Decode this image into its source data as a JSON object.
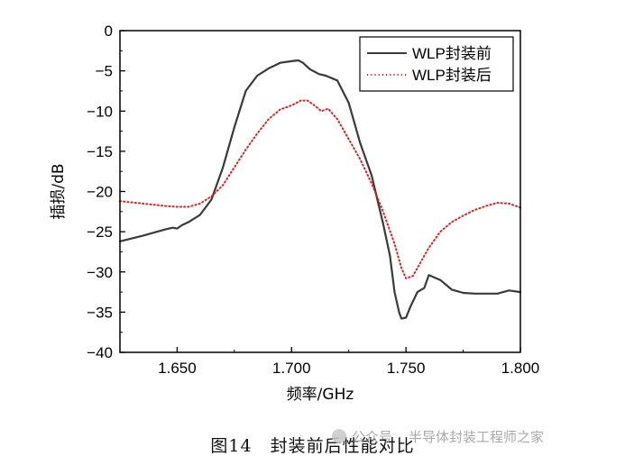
{
  "chart_data": {
    "type": "line",
    "xlabel": "频率/GHz",
    "ylabel": "插损/dB",
    "xlim": [
      1.625,
      1.8
    ],
    "ylim": [
      -40,
      0
    ],
    "xticks": [
      1.65,
      1.7,
      1.75,
      1.8
    ],
    "xtick_labels": [
      "1.650",
      "1.700",
      "1.750",
      "1.800"
    ],
    "yticks": [
      0,
      -5,
      -10,
      -15,
      -20,
      -25,
      -30,
      -35,
      -40
    ],
    "ytick_labels": [
      "0",
      "−5",
      "−10",
      "−15",
      "−20",
      "−25",
      "−30",
      "−35",
      "−40"
    ],
    "legend_position": "top-right",
    "grid": false,
    "series": [
      {
        "name": "WLP封装前",
        "color": "#3a3a3a",
        "style": "solid",
        "x": [
          1.625,
          1.635,
          1.645,
          1.648,
          1.65,
          1.652,
          1.655,
          1.66,
          1.665,
          1.67,
          1.675,
          1.68,
          1.685,
          1.69,
          1.695,
          1.7,
          1.703,
          1.705,
          1.708,
          1.712,
          1.715,
          1.72,
          1.725,
          1.73,
          1.735,
          1.74,
          1.743,
          1.745,
          1.747,
          1.748,
          1.75,
          1.752,
          1.755,
          1.758,
          1.76,
          1.765,
          1.77,
          1.775,
          1.78,
          1.785,
          1.79,
          1.795,
          1.8
        ],
        "y": [
          -26.2,
          -25.5,
          -24.7,
          -24.5,
          -24.6,
          -24.2,
          -23.8,
          -22.9,
          -21.0,
          -17.0,
          -12.0,
          -7.5,
          -5.6,
          -4.7,
          -4.0,
          -3.8,
          -3.7,
          -4.0,
          -4.8,
          -5.4,
          -5.6,
          -6.2,
          -9.0,
          -14.0,
          -18.0,
          -24.0,
          -28.0,
          -32.5,
          -35.0,
          -35.8,
          -35.7,
          -34.3,
          -32.5,
          -32.0,
          -30.4,
          -31.0,
          -32.2,
          -32.6,
          -32.7,
          -32.7,
          -32.7,
          -32.3,
          -32.5
        ]
      },
      {
        "name": "WLP封装后",
        "color": "#e02020",
        "style": "dotted",
        "x": [
          1.625,
          1.635,
          1.645,
          1.65,
          1.655,
          1.66,
          1.665,
          1.67,
          1.675,
          1.68,
          1.685,
          1.69,
          1.695,
          1.7,
          1.704,
          1.707,
          1.71,
          1.713,
          1.716,
          1.72,
          1.725,
          1.73,
          1.735,
          1.74,
          1.745,
          1.748,
          1.75,
          1.753,
          1.756,
          1.76,
          1.765,
          1.77,
          1.775,
          1.78,
          1.785,
          1.79,
          1.795,
          1.8
        ],
        "y": [
          -21.2,
          -21.5,
          -21.8,
          -21.9,
          -21.9,
          -21.5,
          -20.6,
          -19.2,
          -17.0,
          -14.8,
          -12.8,
          -11.0,
          -9.8,
          -9.3,
          -8.7,
          -8.7,
          -9.3,
          -10.0,
          -9.7,
          -11.0,
          -13.5,
          -16.0,
          -19.0,
          -22.5,
          -26.5,
          -29.5,
          -30.8,
          -30.5,
          -29.0,
          -27.0,
          -25.0,
          -23.8,
          -23.0,
          -22.3,
          -21.8,
          -21.4,
          -21.5,
          -22.0
        ]
      }
    ]
  },
  "caption": "图14　封装前后性能对比",
  "watermark": {
    "left": "公众号",
    "right": "半导体封装工程师之家"
  }
}
